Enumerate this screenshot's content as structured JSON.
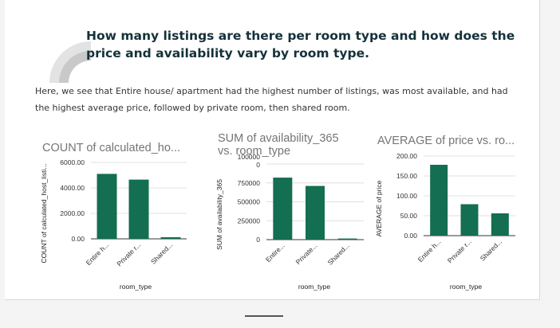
{
  "slide": {
    "title_lines": [
      "How many listings are there per room type and how does the",
      "price and availability vary by room type."
    ],
    "description_lines": [
      "Here, we see that Entire house/ apartment had the highest number of listings, was most available, and had",
      "the highest average price, followed by private room, then shared room."
    ]
  },
  "colors": {
    "bar": "#136e52",
    "title_text": "#757575",
    "grid": "#e0e0e0",
    "axis": "#333333"
  },
  "chart_data": [
    {
      "type": "bar",
      "title": "COUNT of calculated_ho...",
      "ylabel": "COUNT of calculated_host_listi...",
      "xlabel": "room_type",
      "categories": [
        "Entire h...",
        "Private r...",
        "Shared..."
      ],
      "values": [
        5100,
        4650,
        130
      ],
      "ylim": [
        0,
        6000
      ],
      "yticks": [
        0,
        2000,
        4000,
        6000
      ],
      "ytick_labels": [
        "0.00",
        "2000.00",
        "4000.00",
        "6000.00"
      ],
      "grid": true
    },
    {
      "type": "bar",
      "title": "SUM of availability_365 vs. room_type",
      "ylabel": "SUM of availability_365",
      "xlabel": "room_type",
      "categories": [
        "Entire...",
        "Private...",
        "Shared..."
      ],
      "values": [
        820000,
        710000,
        15000
      ],
      "ylim": [
        0,
        1000000
      ],
      "yticks": [
        0,
        250000,
        500000,
        750000,
        1000000
      ],
      "ytick_labels": [
        "0",
        "250000",
        "500000",
        "750000",
        "1000000"
      ],
      "grid": true
    },
    {
      "type": "bar",
      "title": "AVERAGE of price vs. ro...",
      "ylabel": "AVERAGE of price",
      "xlabel": "room_type",
      "categories": [
        "Entire h...",
        "Private r...",
        "Shared..."
      ],
      "values": [
        178,
        79,
        56
      ],
      "ylim": [
        0,
        200
      ],
      "yticks": [
        0,
        50,
        100,
        150,
        200
      ],
      "ytick_labels": [
        "0.00",
        "50.00",
        "100.00",
        "150.00",
        "200.00"
      ],
      "grid": true
    }
  ]
}
